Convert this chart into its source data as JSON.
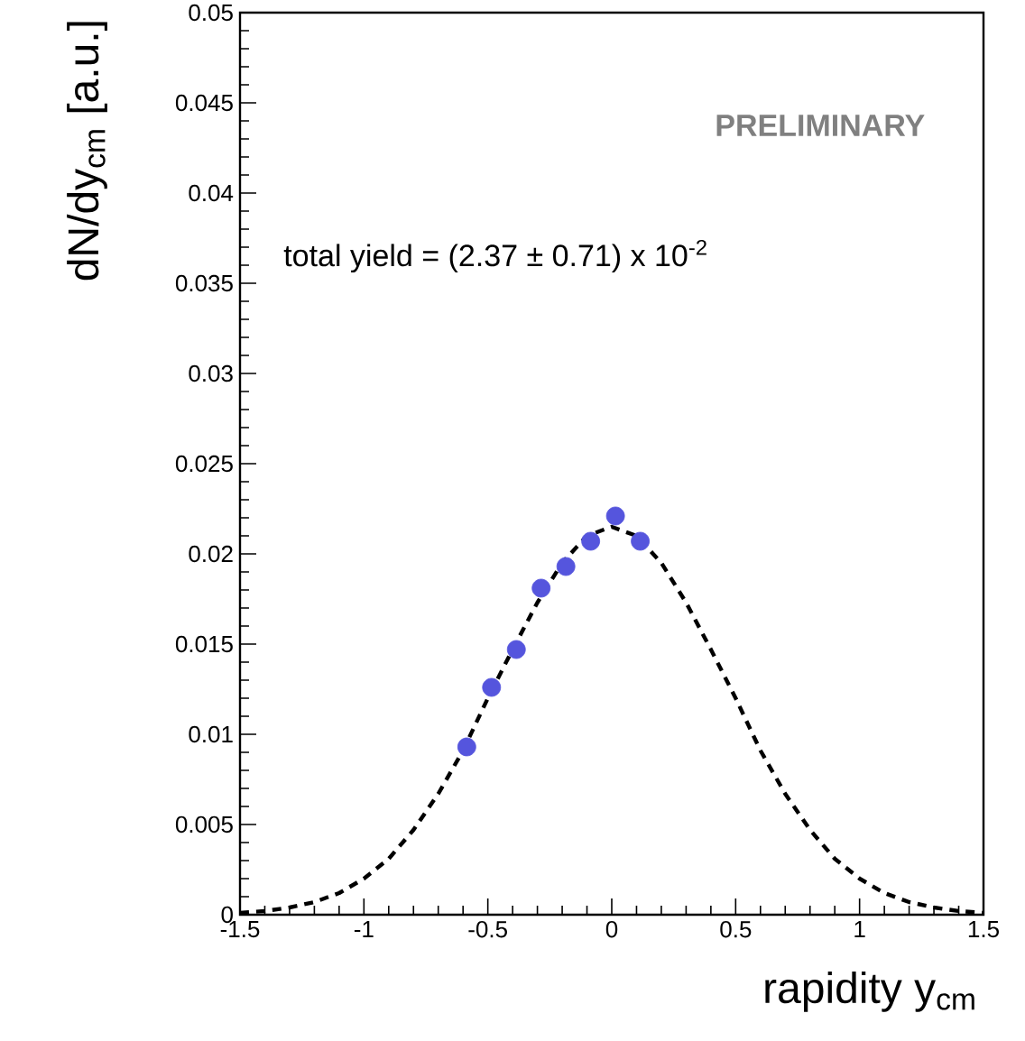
{
  "chart_data": {
    "type": "scatter",
    "xlabel": "rapidity y$_{cm}$",
    "ylabel": "dN/dy$_{cm}$ [a.u.]",
    "annotations": [
      "PRELIMINARY",
      "total yield = (2.37 ± 0.71) x 10$^{-2}$"
    ],
    "xlim": [
      -1.5,
      1.5
    ],
    "xticks": [
      -1.5,
      -1,
      -0.5,
      0,
      0.5,
      1,
      1.5
    ],
    "ylim": [
      0,
      0.05
    ],
    "yticks": [
      0,
      0.005,
      0.01,
      0.015,
      0.02,
      0.025,
      0.03,
      0.035,
      0.04,
      0.045,
      0.05
    ],
    "grid": false,
    "series": [
      {
        "marker": "circle",
        "color": "#5555dd",
        "x": [
          -0.585,
          -0.485,
          -0.385,
          -0.285,
          -0.185,
          -0.085,
          0.015,
          0.115
        ],
        "values": [
          0.0093,
          0.0126,
          0.0147,
          0.0181,
          0.0193,
          0.0207,
          0.0221,
          0.0207
        ]
      },
      {
        "type": "line",
        "marker": "none",
        "line_style": "dashed",
        "color": "#000000",
        "x": [
          -1.5,
          -1.4,
          -1.3,
          -1.2,
          -1.1,
          -1.0,
          -0.9,
          -0.8,
          -0.7,
          -0.6,
          -0.5,
          -0.4,
          -0.3,
          -0.2,
          -0.1,
          0,
          0.1,
          0.2,
          0.3,
          0.4,
          0.5,
          0.6,
          0.7,
          0.8,
          0.9,
          1.0,
          1.1,
          1.2,
          1.3,
          1.4,
          1.5
        ],
        "values": [
          0.0001,
          0.0002,
          0.0004,
          0.0007,
          0.0012,
          0.002,
          0.0031,
          0.0047,
          0.0067,
          0.0091,
          0.012,
          0.0147,
          0.0173,
          0.0195,
          0.021,
          0.0215,
          0.021,
          0.0195,
          0.0173,
          0.0147,
          0.012,
          0.0091,
          0.0067,
          0.0047,
          0.0031,
          0.002,
          0.0012,
          0.0007,
          0.0004,
          0.0002,
          0.0001
        ]
      }
    ]
  }
}
